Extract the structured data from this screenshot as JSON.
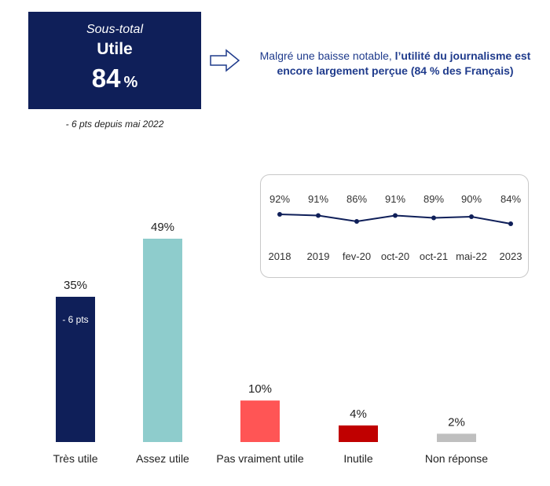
{
  "subtotal": {
    "label": "Sous-total",
    "name": "Utile",
    "value": "84",
    "unit": "%",
    "change_note": "- 6 pts depuis mai 2022"
  },
  "statement": {
    "part1": "Malgré une baisse notable, ",
    "part2_bold": "l’utilité du journalisme est encore largement perçue (84 % des Français)"
  },
  "colors": {
    "navy": "#0f1f59",
    "teal": "#8ecccc",
    "red": "#ff5555",
    "darkred": "#c00000",
    "gray": "#bfbfbf",
    "text_blue": "#1f3b8c"
  },
  "chart_data": [
    {
      "type": "bar",
      "categories": [
        "Très utile",
        "Assez utile",
        "Pas vraiment utile",
        "Inutile",
        "Non réponse"
      ],
      "values": [
        35,
        49,
        10,
        4,
        2
      ],
      "value_labels": [
        "35%",
        "49%",
        "10%",
        "4%",
        "2%"
      ],
      "colors": [
        "#0f1f59",
        "#8ecccc",
        "#ff5555",
        "#c00000",
        "#bfbfbf"
      ],
      "annotations": [
        {
          "category": "Très utile",
          "text": "- 6 pts"
        }
      ],
      "ylim": [
        0,
        50
      ],
      "grid": false
    },
    {
      "type": "line",
      "categories": [
        "2018",
        "2019",
        "fev-20",
        "oct-20",
        "oct-21",
        "mai-22",
        "2023"
      ],
      "values": [
        92,
        91,
        86,
        91,
        89,
        90,
        84
      ],
      "value_labels": [
        "92%",
        "91%",
        "86%",
        "91%",
        "89%",
        "90%",
        "84%"
      ],
      "color": "#0f1f59",
      "grid": false
    }
  ]
}
